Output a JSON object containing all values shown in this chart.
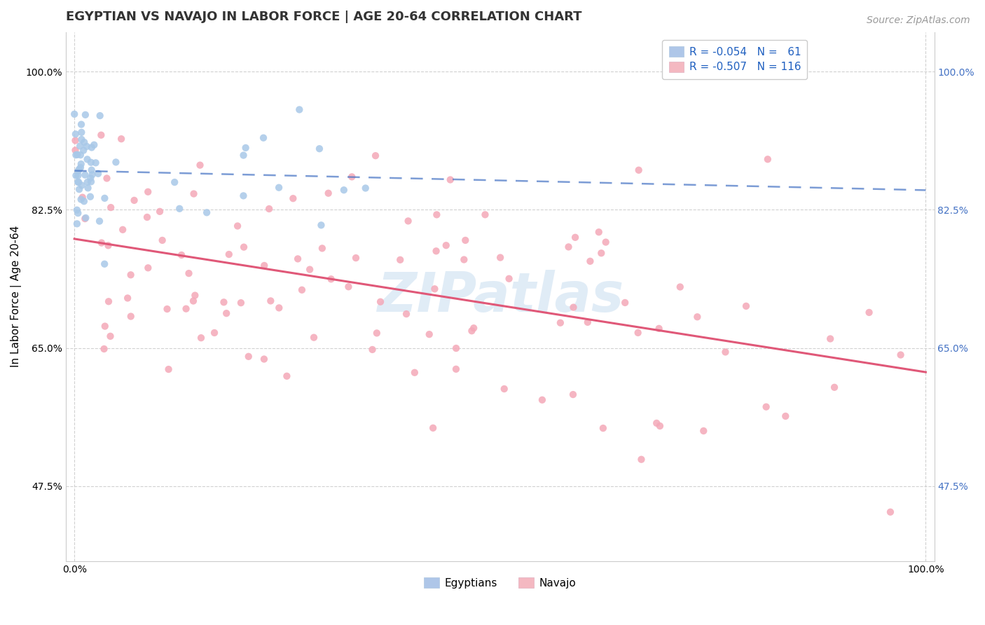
{
  "title": "EGYPTIAN VS NAVAJO IN LABOR FORCE | AGE 20-64 CORRELATION CHART",
  "source_text": "Source: ZipAtlas.com",
  "ylabel": "In Labor Force | Age 20-64",
  "x_tick_labels": [
    "0.0%",
    "100.0%"
  ],
  "y_tick_labels": [
    "47.5%",
    "65.0%",
    "82.5%",
    "100.0%"
  ],
  "y_tick_values": [
    0.475,
    0.65,
    0.825,
    1.0
  ],
  "egyptian_color": "#a8c8e8",
  "navajo_color": "#f4a8b8",
  "egyptian_line_color": "#4472c4",
  "navajo_line_color": "#e05878",
  "egyptian_line_style": "dashed",
  "navajo_line_style": "solid",
  "watermark": "ZIPatlas",
  "background_color": "#ffffff",
  "grid_color": "#cccccc",
  "legend_blue_color": "#aec6e8",
  "legend_pink_color": "#f4b8c1",
  "legend_text_color": "#2060c0",
  "right_tick_color": "#4472c4",
  "title_fontsize": 13,
  "axis_label_fontsize": 11,
  "tick_fontsize": 10,
  "legend_fontsize": 11,
  "source_fontsize": 10,
  "watermark_color": "#c8ddf0",
  "ylim_low": 0.38,
  "ylim_high": 1.05,
  "xlim_low": -0.01,
  "xlim_high": 1.01
}
